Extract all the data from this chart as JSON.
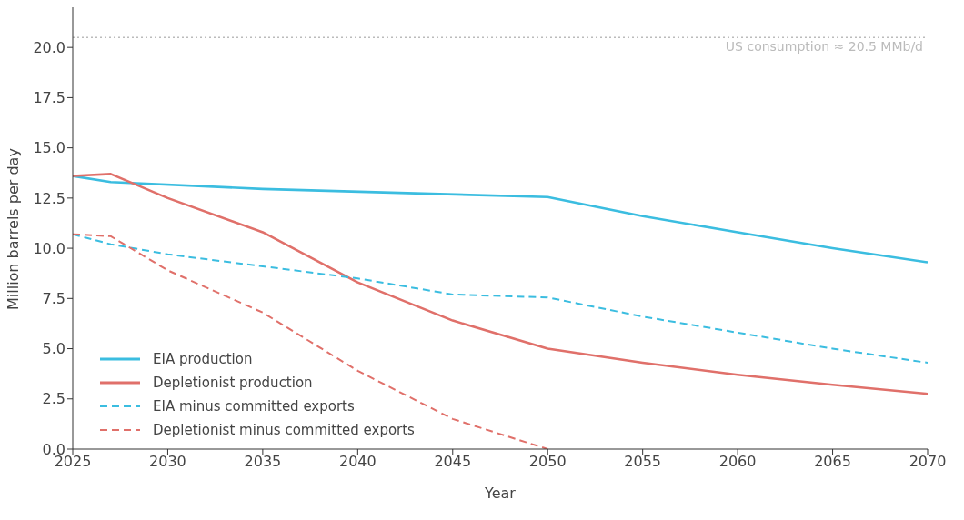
{
  "chart_data": {
    "type": "line",
    "xlabel": "Year",
    "ylabel": "Million barrels per day",
    "xlim": [
      2025,
      2070
    ],
    "xticks": [
      2025,
      2030,
      2035,
      2040,
      2045,
      2050,
      2055,
      2060,
      2065,
      2070
    ],
    "ylim": [
      0,
      22
    ],
    "yticks": [
      {
        "value": 0,
        "label": "0.0"
      },
      {
        "value": 2.5,
        "label": "2.5"
      },
      {
        "value": 5,
        "label": "5.0"
      },
      {
        "value": 7.5,
        "label": "7.5"
      },
      {
        "value": 10,
        "label": "10.0"
      },
      {
        "value": 12.5,
        "label": "12.5"
      },
      {
        "value": 15,
        "label": "15.0"
      },
      {
        "value": 17.5,
        "label": "17.5"
      },
      {
        "value": 20,
        "label": "20.0"
      }
    ],
    "grid": false,
    "legend": "bottom left",
    "marker": "none",
    "series": [
      {
        "name": "EIA production",
        "color": "#3bbde0",
        "line_style": "solid",
        "x": [
          2025,
          2027,
          2035,
          2050,
          2055,
          2060,
          2065,
          2070
        ],
        "values": [
          13.6,
          13.3,
          12.95,
          12.55,
          11.6,
          10.8,
          10.0,
          9.3
        ]
      },
      {
        "name": "Depletionist production",
        "color": "#e0706a",
        "line_style": "solid",
        "x": [
          2025,
          2027,
          2030,
          2035,
          2040,
          2045,
          2050,
          2055,
          2060,
          2065,
          2070
        ],
        "values": [
          13.6,
          13.7,
          12.5,
          10.8,
          8.3,
          6.4,
          5.0,
          4.3,
          3.7,
          3.2,
          2.75
        ]
      },
      {
        "name": "EIA minus committed exports",
        "color": "#3bbde0",
        "line_style": "dashed",
        "x": [
          2025,
          2027,
          2030,
          2035,
          2040,
          2045,
          2050,
          2055,
          2060,
          2065,
          2070
        ],
        "values": [
          10.7,
          10.2,
          9.7,
          9.1,
          8.5,
          7.7,
          7.55,
          6.6,
          5.8,
          5.0,
          4.3
        ]
      },
      {
        "name": "Depletionist minus committed exports",
        "color": "#e0706a",
        "line_style": "dashed",
        "x": [
          2025,
          2027,
          2030,
          2035,
          2040,
          2045,
          2050
        ],
        "values": [
          10.7,
          10.6,
          8.9,
          6.8,
          3.9,
          1.5,
          0.0
        ]
      }
    ],
    "ref_lines": [
      {
        "axis": "y",
        "value": 20.5,
        "label": "US consumption ≈ 20.5 MMb/d",
        "color": "#bbbbbb",
        "line_style": "dotted"
      }
    ]
  }
}
